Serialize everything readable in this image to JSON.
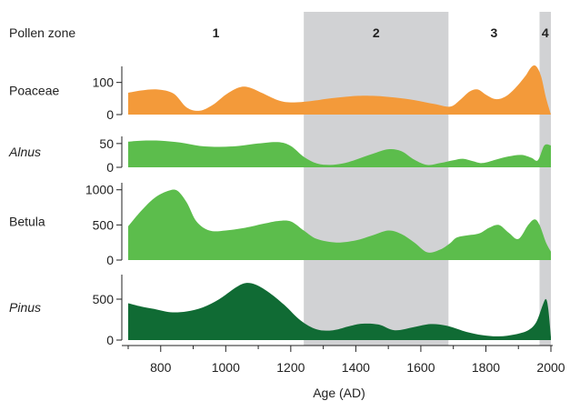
{
  "chart_data": {
    "type": "area",
    "xlabel": "Age (AD)",
    "x_ticks": [
      800,
      1000,
      1200,
      1400,
      1600,
      1800,
      2000
    ],
    "xlim": [
      700,
      2000
    ],
    "zone_label": "Pollen zone",
    "zones": [
      {
        "label": "1",
        "start": 700,
        "end": 1240,
        "shaded": false
      },
      {
        "label": "2",
        "start": 1240,
        "end": 1685,
        "shaded": true
      },
      {
        "label": "3",
        "start": 1685,
        "end": 1965,
        "shaded": false
      },
      {
        "label": "4",
        "start": 1965,
        "end": 2000,
        "shaded": true
      }
    ],
    "zone_color": "#d1d2d4",
    "series": [
      {
        "name": "Poaceae",
        "italic": false,
        "color": "#f39a3a",
        "ylim": [
          0,
          150
        ],
        "yticks": [
          0,
          100
        ],
        "x": [
          700,
          740,
          790,
          840,
          880,
          920,
          960,
          1000,
          1040,
          1070,
          1110,
          1160,
          1200,
          1260,
          1320,
          1400,
          1460,
          1520,
          1580,
          1640,
          1690,
          1720,
          1750,
          1775,
          1800,
          1830,
          1860,
          1890,
          1920,
          1940,
          1955,
          1970,
          1985,
          2000
        ],
        "values": [
          68,
          75,
          78,
          65,
          22,
          12,
          30,
          62,
          84,
          85,
          68,
          45,
          38,
          42,
          50,
          58,
          58,
          53,
          45,
          33,
          25,
          45,
          72,
          78,
          62,
          48,
          56,
          82,
          118,
          148,
          150,
          118,
          52,
          0
        ]
      },
      {
        "name": "Alnus",
        "italic": true,
        "color": "#5cbd4c",
        "ylim": [
          0,
          65
        ],
        "yticks": [
          0,
          50
        ],
        "x": [
          700,
          740,
          800,
          860,
          920,
          980,
          1040,
          1100,
          1160,
          1200,
          1240,
          1280,
          1320,
          1360,
          1400,
          1450,
          1500,
          1540,
          1580,
          1620,
          1660,
          1700,
          1730,
          1760,
          1790,
          1830,
          1870,
          1910,
          1940,
          1960,
          1980,
          2000
        ],
        "values": [
          54,
          56,
          56,
          52,
          45,
          43,
          45,
          50,
          53,
          45,
          22,
          8,
          5,
          8,
          16,
          28,
          38,
          34,
          16,
          5,
          9,
          15,
          18,
          13,
          9,
          16,
          23,
          26,
          20,
          15,
          46,
          46
        ]
      },
      {
        "name": "Betula",
        "italic": false,
        "color": "#5cbd4c",
        "ylim": [
          0,
          1100
        ],
        "yticks": [
          0,
          500,
          1000
        ],
        "x": [
          700,
          740,
          780,
          820,
          850,
          880,
          910,
          950,
          1000,
          1060,
          1120,
          1160,
          1200,
          1240,
          1280,
          1340,
          1400,
          1450,
          1500,
          1540,
          1580,
          1620,
          1660,
          1690,
          1710,
          1740,
          1780,
          1810,
          1840,
          1870,
          1900,
          1930,
          1950,
          1965,
          1985,
          2000
        ],
        "values": [
          480,
          700,
          880,
          980,
          990,
          820,
          550,
          420,
          420,
          460,
          520,
          555,
          550,
          420,
          300,
          250,
          280,
          350,
          420,
          370,
          250,
          110,
          150,
          240,
          320,
          350,
          380,
          460,
          500,
          390,
          300,
          500,
          580,
          500,
          250,
          120
        ]
      },
      {
        "name": "Pinus",
        "italic": true,
        "color": "#106b34",
        "ylim": [
          0,
          800
        ],
        "yticks": [
          0,
          500
        ],
        "x": [
          700,
          740,
          780,
          830,
          880,
          930,
          980,
          1030,
          1060,
          1090,
          1130,
          1180,
          1230,
          1280,
          1330,
          1380,
          1420,
          1470,
          1520,
          1580,
          1630,
          1680,
          1740,
          1790,
          1840,
          1890,
          1930,
          1955,
          1975,
          1985,
          1992,
          2000
        ],
        "values": [
          450,
          410,
          380,
          340,
          350,
          400,
          500,
          640,
          695,
          680,
          590,
          430,
          240,
          130,
          120,
          170,
          200,
          190,
          120,
          160,
          195,
          175,
          100,
          60,
          45,
          70,
          120,
          220,
          430,
          500,
          380,
          40
        ]
      }
    ]
  }
}
